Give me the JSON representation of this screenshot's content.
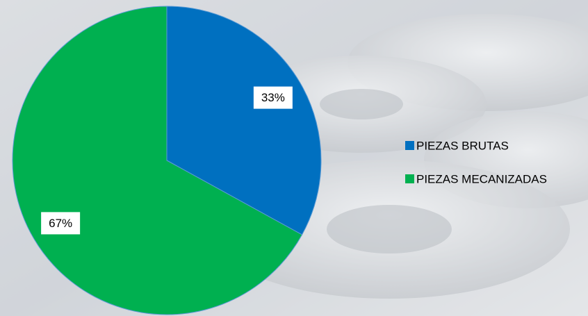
{
  "chart_data": {
    "type": "pie",
    "categories": [
      "PIEZAS BRUTAS",
      "PIEZAS MECANIZADAS"
    ],
    "values": [
      33,
      67
    ],
    "value_labels": [
      "33%",
      "67%"
    ],
    "colors": [
      "#0070c0",
      "#00b050"
    ],
    "legend": "right"
  }
}
